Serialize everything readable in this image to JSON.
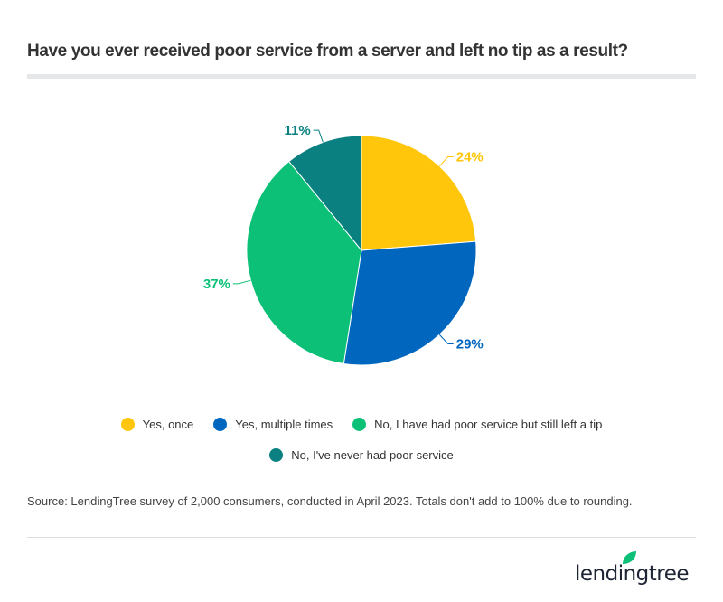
{
  "chart_data": {
    "type": "pie",
    "title": "Have you ever received poor service from a server and left no tip as a result?",
    "slices": [
      {
        "name": "Yes, once",
        "value": 24,
        "label": "24%",
        "color": "#FFC60B"
      },
      {
        "name": "Yes, multiple times",
        "value": 29,
        "label": "29%",
        "color": "#0066BE"
      },
      {
        "name": "No, I have had poor service but still left a tip",
        "value": 37,
        "label": "37%",
        "color": "#0CC177"
      },
      {
        "name": "No, I've never had poor service",
        "value": 11,
        "label": "11%",
        "color": "#0A8080"
      }
    ],
    "legend_position": "bottom",
    "start": "top, clockwise"
  },
  "source": "Source: LendingTree survey of 2,000 consumers, conducted in April 2023. Totals don't add to 100% due to rounding.",
  "logo": {
    "text": "lendingtree",
    "leaf_color": "#0CC177"
  }
}
